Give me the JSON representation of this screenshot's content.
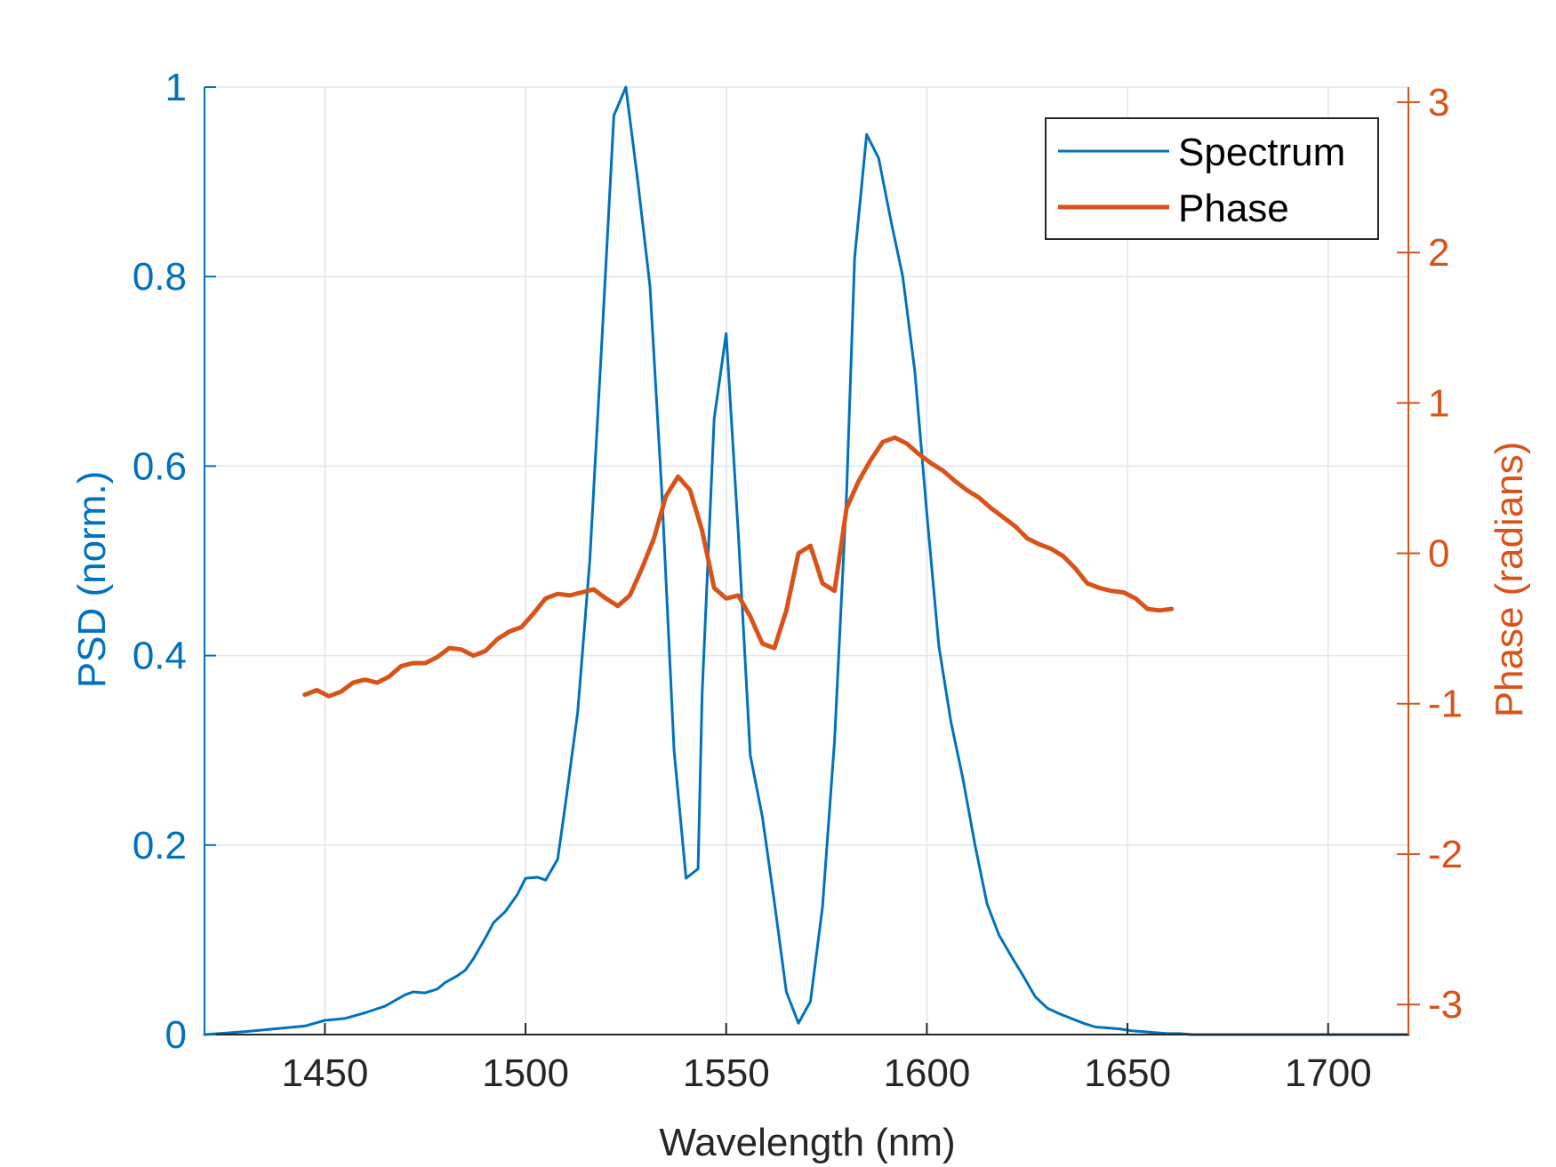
{
  "chart_data": {
    "type": "line",
    "title": "",
    "xlabel": "Wavelength (nm)",
    "ylabel_left": "PSD (norm.)",
    "ylabel_right": "Phase (radians)",
    "xlim": [
      1420,
      1720
    ],
    "ylim_left": [
      0,
      1
    ],
    "ylim_right": [
      -3.2,
      3.1
    ],
    "xticks": [
      1450,
      1500,
      1550,
      1600,
      1650,
      1700
    ],
    "xtick_labels": [
      "1450",
      "1500",
      "1550",
      "1600",
      "1650",
      "1700"
    ],
    "yticks_left": [
      0,
      0.2,
      0.4,
      0.6,
      0.8,
      1
    ],
    "ytick_labels_left": [
      "0",
      "0.2",
      "0.4",
      "0.6",
      "0.8",
      "1"
    ],
    "yticks_right": [
      -3,
      -2,
      -1,
      0,
      1,
      2,
      3
    ],
    "ytick_labels_right": [
      "-3",
      "-2",
      "-1",
      "0",
      "1",
      "2",
      "3"
    ],
    "grid": true,
    "legend_position": "top-right",
    "colors": {
      "spectrum": "#0072BD",
      "phase": "#D95319",
      "axis_left": "#0072BD",
      "axis_right": "#D95319",
      "grid": "#dfe6ee",
      "text": "#262626"
    },
    "series": [
      {
        "name": "Spectrum",
        "axis": "left",
        "x": [
          1420,
          1430,
          1440,
          1445,
          1450,
          1455,
          1460,
          1465,
          1470,
          1472,
          1475,
          1478,
          1480,
          1483,
          1485,
          1487,
          1490,
          1492,
          1495,
          1498,
          1500,
          1503,
          1505,
          1508,
          1510,
          1513,
          1516,
          1519,
          1522,
          1525,
          1528,
          1531,
          1534,
          1537,
          1540,
          1543,
          1544,
          1547,
          1550,
          1553,
          1556,
          1559,
          1562,
          1565,
          1568,
          1571,
          1574,
          1577,
          1580,
          1582,
          1585,
          1588,
          1591,
          1594,
          1597,
          1600,
          1603,
          1606,
          1609,
          1612,
          1615,
          1618,
          1621,
          1624,
          1627,
          1630,
          1633,
          1636,
          1639,
          1642,
          1645,
          1648,
          1651,
          1654,
          1657,
          1660,
          1663,
          1666,
          1670,
          1675,
          1680,
          1690,
          1700,
          1710,
          1720
        ],
        "values": [
          0.0,
          0.003,
          0.007,
          0.009,
          0.015,
          0.017,
          0.023,
          0.03,
          0.042,
          0.045,
          0.044,
          0.048,
          0.055,
          0.062,
          0.068,
          0.08,
          0.102,
          0.118,
          0.13,
          0.148,
          0.165,
          0.166,
          0.163,
          0.185,
          0.245,
          0.34,
          0.5,
          0.73,
          0.97,
          1.0,
          0.9,
          0.79,
          0.57,
          0.3,
          0.165,
          0.175,
          0.36,
          0.65,
          0.74,
          0.53,
          0.295,
          0.23,
          0.14,
          0.045,
          0.012,
          0.035,
          0.135,
          0.31,
          0.57,
          0.82,
          0.95,
          0.925,
          0.86,
          0.8,
          0.7,
          0.55,
          0.41,
          0.33,
          0.27,
          0.2,
          0.138,
          0.105,
          0.083,
          0.062,
          0.04,
          0.028,
          0.022,
          0.017,
          0.012,
          0.008,
          0.007,
          0.006,
          0.004,
          0.003,
          0.002,
          0.001,
          0.001,
          0.0,
          0.0,
          0.0,
          0.0,
          0.0,
          0.0,
          0.0,
          0.0
        ]
      },
      {
        "name": "Phase",
        "axis": "right",
        "x": [
          1445,
          1448,
          1451,
          1454,
          1457,
          1460,
          1463,
          1466,
          1469,
          1472,
          1475,
          1478,
          1481,
          1484,
          1487,
          1490,
          1493,
          1496,
          1499,
          1502,
          1505,
          1508,
          1511,
          1514,
          1517,
          1520,
          1523,
          1526,
          1529,
          1532,
          1535,
          1538,
          1541,
          1544,
          1547,
          1550,
          1553,
          1556,
          1559,
          1562,
          1565,
          1568,
          1571,
          1574,
          1577,
          1580,
          1583,
          1586,
          1589,
          1592,
          1595,
          1598,
          1601,
          1604,
          1607,
          1610,
          1613,
          1616,
          1619,
          1622,
          1625,
          1628,
          1631,
          1634,
          1637,
          1640,
          1643,
          1646,
          1649,
          1652,
          1655,
          1658,
          1661
        ],
        "values": [
          -0.94,
          -0.91,
          -0.95,
          -0.92,
          -0.86,
          -0.84,
          -0.86,
          -0.82,
          -0.75,
          -0.73,
          -0.73,
          -0.69,
          -0.63,
          -0.64,
          -0.68,
          -0.65,
          -0.57,
          -0.52,
          -0.49,
          -0.4,
          -0.3,
          -0.27,
          -0.28,
          -0.26,
          -0.24,
          -0.3,
          -0.35,
          -0.28,
          -0.1,
          0.1,
          0.38,
          0.51,
          0.42,
          0.15,
          -0.23,
          -0.3,
          -0.28,
          -0.42,
          -0.6,
          -0.63,
          -0.38,
          0.0,
          0.05,
          -0.2,
          -0.25,
          0.3,
          0.48,
          0.62,
          0.74,
          0.77,
          0.73,
          0.66,
          0.6,
          0.55,
          0.48,
          0.42,
          0.37,
          0.3,
          0.24,
          0.18,
          0.1,
          0.06,
          0.03,
          -0.02,
          -0.1,
          -0.2,
          -0.23,
          -0.25,
          -0.26,
          -0.3,
          -0.37,
          -0.38,
          -0.37
        ]
      }
    ]
  }
}
